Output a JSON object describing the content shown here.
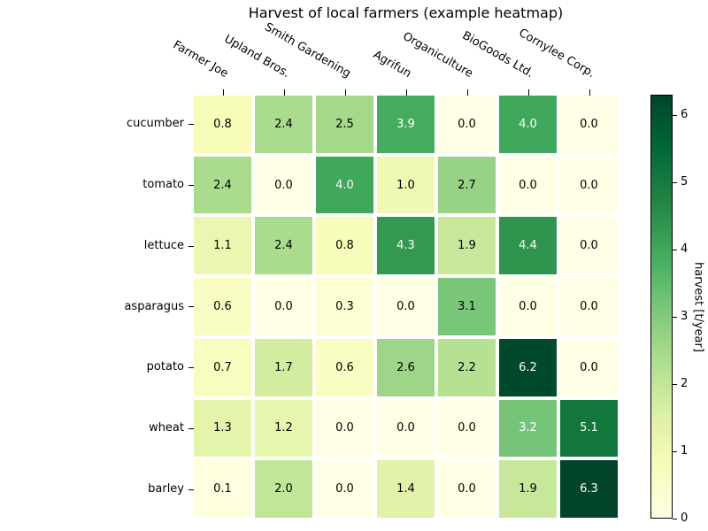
{
  "chart_data": {
    "type": "heatmap",
    "title": "Harvest of local farmers (example heatmap)",
    "rows": [
      "cucumber",
      "tomato",
      "lettuce",
      "asparagus",
      "potato",
      "wheat",
      "barley"
    ],
    "columns": [
      "Farmer Joe",
      "Upland Bros.",
      "Smith Gardening",
      "Agrifun",
      "Organiculture",
      "BioGoods Ltd.",
      "Cornylee Corp."
    ],
    "values": [
      [
        0.8,
        2.4,
        2.5,
        3.9,
        0.0,
        4.0,
        0.0
      ],
      [
        2.4,
        0.0,
        4.0,
        1.0,
        2.7,
        0.0,
        0.0
      ],
      [
        1.1,
        2.4,
        0.8,
        4.3,
        1.9,
        4.4,
        0.0
      ],
      [
        0.6,
        0.0,
        0.3,
        0.0,
        3.1,
        0.0,
        0.0
      ],
      [
        0.7,
        1.7,
        0.6,
        2.6,
        2.2,
        6.2,
        0.0
      ],
      [
        1.3,
        1.2,
        0.0,
        0.0,
        0.0,
        3.2,
        5.1
      ],
      [
        0.1,
        2.0,
        0.0,
        1.4,
        0.0,
        1.9,
        6.3
      ]
    ],
    "value_decimals": 1,
    "colorbar": {
      "label": "harvest [t/year]",
      "ticks": [
        "0",
        "1",
        "2",
        "3",
        "4",
        "5",
        "6"
      ],
      "vmin": 0,
      "vmax": 6.3,
      "position": "right"
    },
    "colormap": {
      "name": "YlGn",
      "colors": [
        "#ffffe5",
        "#f7fcb9",
        "#d9f0a3",
        "#addd8e",
        "#78c679",
        "#41ab5d",
        "#238443",
        "#006837",
        "#004529"
      ]
    },
    "annotation_text_colors": {
      "low": "#000000",
      "high": "#ffffff",
      "threshold_norm": 0.5
    },
    "layout_hints": {
      "x_tick_label_rotation_deg": -30,
      "x_labels_position": "top",
      "grid_line_color": "#ffffff"
    }
  }
}
